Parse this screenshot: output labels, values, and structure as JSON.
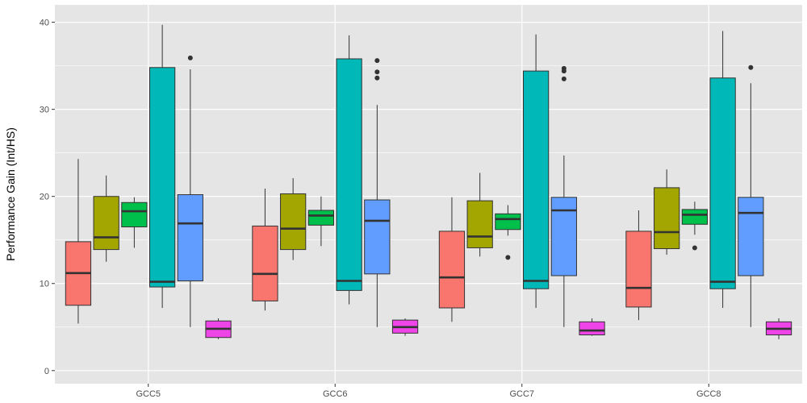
{
  "chart_data": {
    "type": "boxplot",
    "title": "",
    "xlabel": "",
    "ylabel": "Performance Gain (Int/HS)",
    "ylim": [
      -1.5,
      42
    ],
    "yticks": [
      0,
      10,
      20,
      30,
      40
    ],
    "categories": [
      "GCC5",
      "GCC6",
      "GCC7",
      "GCC8"
    ],
    "legend": "none",
    "colors": {
      "panel": "#e5e5e5",
      "grid": "#ffffff",
      "outline": "#333333",
      "series": [
        "#f8766d",
        "#a3a500",
        "#00bf4a",
        "#00b8b8",
        "#619cff",
        "#ee44e8"
      ]
    },
    "groups": [
      {
        "category": "GCC5",
        "boxes": [
          {
            "low": 5.4,
            "q1": 7.5,
            "median": 11.2,
            "q3": 14.8,
            "high": 24.3,
            "outliers": []
          },
          {
            "low": 12.5,
            "q1": 13.9,
            "median": 15.3,
            "q3": 20.0,
            "high": 22.4,
            "outliers": []
          },
          {
            "low": 14.1,
            "q1": 16.5,
            "median": 18.3,
            "q3": 19.3,
            "high": 19.9,
            "outliers": []
          },
          {
            "low": 7.2,
            "q1": 9.6,
            "median": 10.2,
            "q3": 34.8,
            "high": 39.7,
            "outliers": []
          },
          {
            "low": 5.0,
            "q1": 10.3,
            "median": 16.9,
            "q3": 20.2,
            "high": 34.6,
            "outliers": [
              35.9
            ]
          },
          {
            "low": 3.6,
            "q1": 3.8,
            "median": 4.8,
            "q3": 5.7,
            "high": 6.0,
            "outliers": []
          }
        ]
      },
      {
        "category": "GCC6",
        "boxes": [
          {
            "low": 6.9,
            "q1": 8.0,
            "median": 11.1,
            "q3": 16.6,
            "high": 20.9,
            "outliers": []
          },
          {
            "low": 12.7,
            "q1": 13.9,
            "median": 16.3,
            "q3": 20.3,
            "high": 22.1,
            "outliers": []
          },
          {
            "low": 14.3,
            "q1": 16.7,
            "median": 17.8,
            "q3": 18.4,
            "high": 20.0,
            "outliers": []
          },
          {
            "low": 7.6,
            "q1": 9.2,
            "median": 10.3,
            "q3": 35.8,
            "high": 38.5,
            "outliers": []
          },
          {
            "low": 5.0,
            "q1": 11.1,
            "median": 17.2,
            "q3": 19.6,
            "high": 30.5,
            "outliers": [
              33.6,
              34.3,
              35.6
            ]
          },
          {
            "low": 4.0,
            "q1": 4.3,
            "median": 5.0,
            "q3": 5.8,
            "high": 6.0,
            "outliers": []
          }
        ]
      },
      {
        "category": "GCC7",
        "boxes": [
          {
            "low": 5.6,
            "q1": 7.2,
            "median": 10.7,
            "q3": 16.0,
            "high": 19.9,
            "outliers": []
          },
          {
            "low": 13.1,
            "q1": 14.1,
            "median": 15.4,
            "q3": 19.5,
            "high": 22.7,
            "outliers": []
          },
          {
            "low": 15.5,
            "q1": 16.2,
            "median": 17.4,
            "q3": 18.0,
            "high": 19.0,
            "outliers": [
              13.0
            ]
          },
          {
            "low": 7.2,
            "q1": 9.4,
            "median": 10.3,
            "q3": 34.4,
            "high": 38.6,
            "outliers": []
          },
          {
            "low": 5.0,
            "q1": 10.9,
            "median": 18.4,
            "q3": 19.9,
            "high": 24.7,
            "outliers": [
              33.5,
              34.4,
              34.7
            ]
          },
          {
            "low": 4.0,
            "q1": 4.1,
            "median": 4.6,
            "q3": 5.6,
            "high": 6.0,
            "outliers": []
          }
        ]
      },
      {
        "category": "GCC8",
        "boxes": [
          {
            "low": 5.8,
            "q1": 7.3,
            "median": 9.5,
            "q3": 16.0,
            "high": 18.4,
            "outliers": []
          },
          {
            "low": 13.3,
            "q1": 14.0,
            "median": 15.9,
            "q3": 21.0,
            "high": 23.1,
            "outliers": []
          },
          {
            "low": 15.6,
            "q1": 16.8,
            "median": 17.9,
            "q3": 18.5,
            "high": 19.4,
            "outliers": [
              14.1
            ]
          },
          {
            "low": 7.2,
            "q1": 9.4,
            "median": 10.2,
            "q3": 33.6,
            "high": 39.0,
            "outliers": []
          },
          {
            "low": 5.0,
            "q1": 10.9,
            "median": 18.1,
            "q3": 19.9,
            "high": 33.0,
            "outliers": [
              34.8
            ]
          },
          {
            "low": 3.6,
            "q1": 4.1,
            "median": 4.8,
            "q3": 5.6,
            "high": 6.0,
            "outliers": []
          }
        ]
      }
    ]
  }
}
